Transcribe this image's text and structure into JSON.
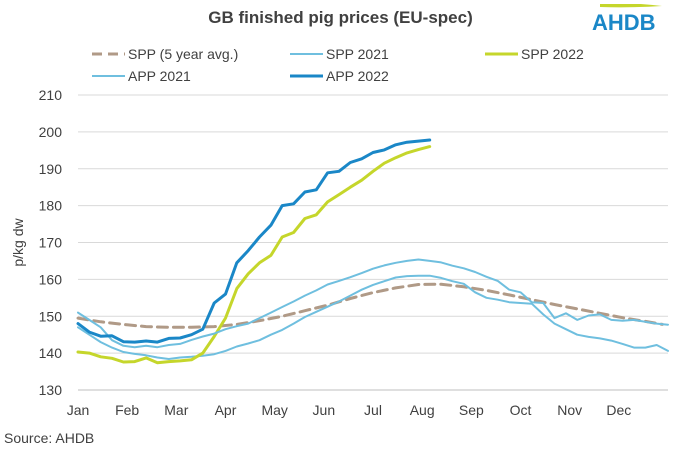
{
  "chart_data": {
    "type": "line",
    "title": "GB finished pig prices (EU-spec)",
    "ylabel": "p/kg dw",
    "xlabel": "",
    "ylim": [
      130,
      210
    ],
    "yticks": [
      130,
      140,
      150,
      160,
      170,
      180,
      190,
      200,
      210
    ],
    "xlim": [
      0,
      52
    ],
    "categories": [
      "Jan",
      "Feb",
      "Mar",
      "Apr",
      "May",
      "Jun",
      "Jul",
      "Aug",
      "Sep",
      "Oct",
      "Nov",
      "Dec"
    ],
    "grid": true,
    "legend_placement": "top",
    "series": [
      {
        "name": "SPP (5 year avg.)",
        "color": "#b09a87",
        "dash": true,
        "width": 3,
        "x": [
          0,
          2,
          4,
          6,
          8,
          10,
          12,
          14,
          16,
          18,
          20,
          22,
          24,
          26,
          28,
          30,
          32,
          34,
          36,
          38,
          40,
          42,
          44,
          46,
          48,
          50,
          51.5
        ],
        "y": [
          149.5,
          148.5,
          147.8,
          147.2,
          147,
          147,
          147.2,
          147.8,
          148.8,
          150,
          151.5,
          153,
          154.8,
          156.4,
          157.7,
          158.6,
          158.7,
          158,
          157,
          155.8,
          154.5,
          153.2,
          152,
          150.8,
          149.6,
          148.6,
          147.8
        ]
      },
      {
        "name": "SPP 2021",
        "color": "#6fbfdf",
        "dash": false,
        "width": 2,
        "x": [
          0,
          1,
          2,
          3,
          4,
          5,
          6,
          7,
          8,
          9,
          10,
          11,
          12,
          13,
          14,
          15,
          16,
          17,
          18,
          19,
          20,
          21,
          22,
          23,
          24,
          25,
          26,
          27,
          28,
          29,
          30,
          31,
          32,
          33,
          34,
          35,
          36,
          37,
          38,
          39,
          40,
          41,
          42,
          43,
          44,
          45,
          46,
          47,
          48,
          49,
          50,
          51,
          52
        ],
        "y": [
          147,
          145,
          143,
          141.5,
          140.3,
          139.8,
          139.4,
          138.8,
          138.4,
          138.8,
          139,
          139.3,
          139.7,
          140.6,
          141.8,
          142.6,
          143.5,
          145,
          146.3,
          148,
          149.8,
          151.2,
          152.6,
          154,
          155.6,
          157.2,
          158.5,
          159.5,
          160.5,
          160.9,
          161,
          161,
          160.4,
          159.5,
          158.8,
          156.5,
          155,
          154.5,
          153.8,
          153.6,
          153.4,
          150.5,
          148,
          146.5,
          145,
          144.4,
          144,
          143.4,
          142.5,
          141.5,
          141.5,
          142.2,
          140.6
        ]
      },
      {
        "name": "SPP 2022",
        "color": "#c5d62b",
        "dash": false,
        "width": 3,
        "x": [
          0,
          1,
          2,
          3,
          4,
          5,
          6,
          7,
          8,
          9,
          10,
          11,
          12,
          13,
          14,
          15,
          16,
          17,
          18,
          19,
          20,
          21,
          22,
          23,
          24,
          25,
          26,
          27,
          28,
          29,
          30,
          31
        ],
        "y": [
          140.3,
          140,
          139,
          138.6,
          137.6,
          137.7,
          138.7,
          137.4,
          137.7,
          137.9,
          138.2,
          140,
          144.5,
          149.5,
          157.5,
          161.5,
          164.5,
          166.5,
          171.5,
          172.7,
          176.5,
          177.5,
          181,
          183,
          185,
          186.9,
          189.3,
          191.5,
          193,
          194.3,
          195.2,
          196
        ]
      },
      {
        "name": "APP 2021",
        "color": "#6fbfdf",
        "dash": false,
        "width": 2,
        "x": [
          0,
          1,
          2,
          3,
          4,
          5,
          6,
          7,
          8,
          9,
          10,
          11,
          12,
          13,
          14,
          15,
          16,
          17,
          18,
          19,
          20,
          21,
          22,
          23,
          24,
          25,
          26,
          27,
          28,
          29,
          30,
          31,
          32,
          33,
          34,
          35,
          36,
          37,
          38,
          39,
          40,
          41,
          42,
          43,
          44,
          45,
          46,
          47,
          48,
          49,
          50,
          51,
          52
        ],
        "y": [
          151,
          149,
          147,
          143.5,
          142,
          141.6,
          142,
          141.6,
          142.2,
          142.5,
          143.6,
          144.5,
          145.3,
          146.5,
          147.3,
          148,
          149.5,
          151,
          152.5,
          154,
          155.6,
          157,
          158.6,
          159.6,
          160.6,
          161.7,
          162.9,
          163.8,
          164.5,
          165,
          165.4,
          165,
          164.6,
          163.7,
          163,
          162,
          160.7,
          159.6,
          157.2,
          156.5,
          153.8,
          153.6,
          149.5,
          150.8,
          149,
          150.2,
          150.5,
          149,
          148.8,
          149,
          148.5,
          148,
          147.7
        ]
      },
      {
        "name": "APP 2022",
        "color": "#1a87c7",
        "dash": false,
        "width": 3,
        "x": [
          0,
          1,
          2,
          3,
          4,
          5,
          6,
          7,
          8,
          9,
          10,
          11,
          12,
          13,
          14,
          15,
          16,
          17,
          18,
          19,
          20,
          21,
          22,
          23,
          24,
          25,
          26,
          27,
          28,
          29,
          30,
          31
        ],
        "y": [
          148,
          145.7,
          144.6,
          144.7,
          143.1,
          143,
          143.3,
          143,
          144,
          144.1,
          145,
          146.5,
          153.6,
          156,
          164.5,
          167.8,
          171.5,
          174.7,
          180,
          180.5,
          183.7,
          184.3,
          188.9,
          189.3,
          191.7,
          192.7,
          194.4,
          195.1,
          196.5,
          197.2,
          197.5,
          197.8
        ]
      }
    ]
  },
  "header": {
    "title": "GB finished pig prices (EU-spec)",
    "logo_text": "AHDB"
  },
  "footer": {
    "source": "Source: AHDB"
  }
}
